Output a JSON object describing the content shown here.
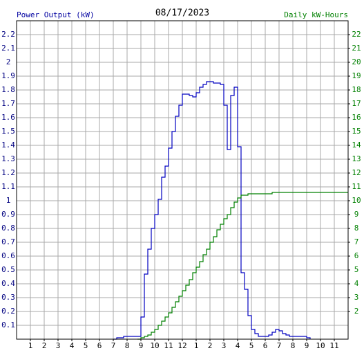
{
  "chart_data": {
    "type": "line",
    "title": "08/17/2023",
    "ylabel": "Power Output (kW)",
    "y2label": "Daily kW-Hours",
    "step": true,
    "grid": true,
    "xlim": [
      0,
      24
    ],
    "xticks": [
      1,
      2,
      3,
      4,
      5,
      6,
      7,
      8,
      9,
      10,
      11,
      12,
      {
        "value": 13,
        "label": "1"
      },
      {
        "value": 14,
        "label": "2"
      },
      {
        "value": 15,
        "label": "3"
      },
      {
        "value": 16,
        "label": "4"
      },
      {
        "value": 17,
        "label": "5"
      },
      {
        "value": 18,
        "label": "6"
      },
      {
        "value": 19,
        "label": "7"
      },
      {
        "value": 20,
        "label": "8"
      },
      {
        "value": 21,
        "label": "9"
      },
      {
        "value": 22,
        "label": "10"
      },
      {
        "value": 23,
        "label": "11"
      }
    ],
    "ylim": [
      0,
      2.3
    ],
    "yticks": [
      0.1,
      0.2,
      0.3,
      0.4,
      0.5,
      0.6,
      0.7,
      0.8,
      0.9,
      1.0,
      1.1,
      1.2,
      1.3,
      1.4,
      1.5,
      1.6,
      1.7,
      1.8,
      1.9,
      2.0,
      2.1,
      2.2
    ],
    "y2lim": [
      0,
      23
    ],
    "y2ticks": [
      2,
      3,
      4,
      5,
      6,
      7,
      8,
      9,
      10,
      11,
      12,
      13,
      14,
      15,
      16,
      17,
      18,
      19,
      20,
      21,
      22
    ],
    "series": [
      {
        "color": "#0000c0",
        "x": [
          7,
          7.25,
          7.5,
          7.75,
          8,
          8.25,
          8.5,
          8.75,
          9,
          9.25,
          9.5,
          9.75,
          10,
          10.25,
          10.5,
          10.75,
          11,
          11.25,
          11.5,
          11.75,
          12,
          12.25,
          12.5,
          12.75,
          13,
          13.25,
          13.5,
          13.75,
          14,
          14.25,
          14.5,
          14.75,
          15,
          15.25,
          15.5,
          15.75,
          16,
          16.25,
          16.5,
          16.75,
          17,
          17.25,
          17.5,
          17.75,
          18,
          18.25,
          18.5,
          18.75,
          19,
          19.25,
          19.5,
          19.75,
          20,
          20.25,
          20.5,
          20.75,
          21,
          21.25
        ],
        "values": [
          0,
          0.01,
          0.01,
          0.02,
          0.02,
          0.02,
          0.02,
          0.02,
          0.16,
          0.47,
          0.65,
          0.8,
          0.9,
          1.01,
          1.17,
          1.25,
          1.38,
          1.5,
          1.61,
          1.69,
          1.77,
          1.77,
          1.76,
          1.75,
          1.78,
          1.82,
          1.84,
          1.86,
          1.86,
          1.85,
          1.85,
          1.84,
          1.69,
          1.37,
          1.76,
          1.82,
          1.39,
          0.48,
          0.36,
          0.17,
          0.07,
          0.04,
          0.02,
          0.02,
          0.02,
          0.03,
          0.05,
          0.07,
          0.06,
          0.04,
          0.03,
          0.02,
          0.02,
          0.02,
          0.02,
          0.02,
          0.01,
          0
        ]
      },
      {
        "color": "#008000",
        "axis": "y2",
        "x": [
          8.75,
          9,
          9.25,
          9.5,
          9.75,
          10,
          10.25,
          10.5,
          10.75,
          11,
          11.25,
          11.5,
          11.75,
          12,
          12.25,
          12.5,
          12.75,
          13,
          13.25,
          13.5,
          13.75,
          14,
          14.25,
          14.5,
          14.75,
          15,
          15.25,
          15.5,
          15.75,
          16,
          16.25,
          16.5,
          16.75,
          17,
          17.5,
          18,
          18.5,
          24
        ],
        "values": [
          0,
          0.1,
          0.2,
          0.3,
          0.5,
          0.7,
          1.0,
          1.3,
          1.6,
          1.9,
          2.3,
          2.7,
          3.1,
          3.5,
          3.9,
          4.3,
          4.8,
          5.2,
          5.6,
          6.1,
          6.5,
          7.0,
          7.4,
          7.9,
          8.3,
          8.7,
          9.0,
          9.5,
          9.9,
          10.2,
          10.4,
          10.4,
          10.5,
          10.5,
          10.5,
          10.5,
          10.6,
          10.6
        ]
      }
    ]
  }
}
